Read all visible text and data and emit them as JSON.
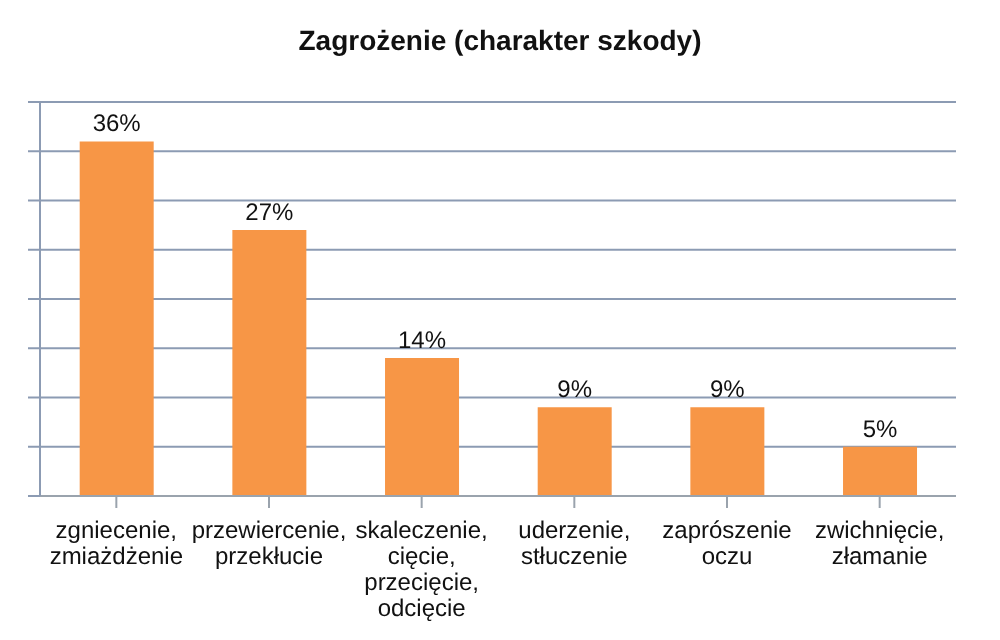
{
  "chart_data": {
    "type": "bar",
    "title": "Zagrożenie (charakter szkody)",
    "categories": [
      "zgniecenie, zmiażdżenie",
      "przewiercenie, przekłucie",
      "skaleczenie, cięcie, przecięcie, odcięcie",
      "uderzenie, stłuczenie",
      "zaprószenie oczu",
      "zwichnięcie, złamanie"
    ],
    "values": [
      36,
      27,
      14,
      9,
      9,
      5
    ],
    "value_labels": [
      "36%",
      "27%",
      "14%",
      "9%",
      "9%",
      "5%"
    ],
    "color": "#f79646",
    "ylim": [
      0,
      40
    ],
    "grid": "y",
    "tick_labels": "x"
  }
}
